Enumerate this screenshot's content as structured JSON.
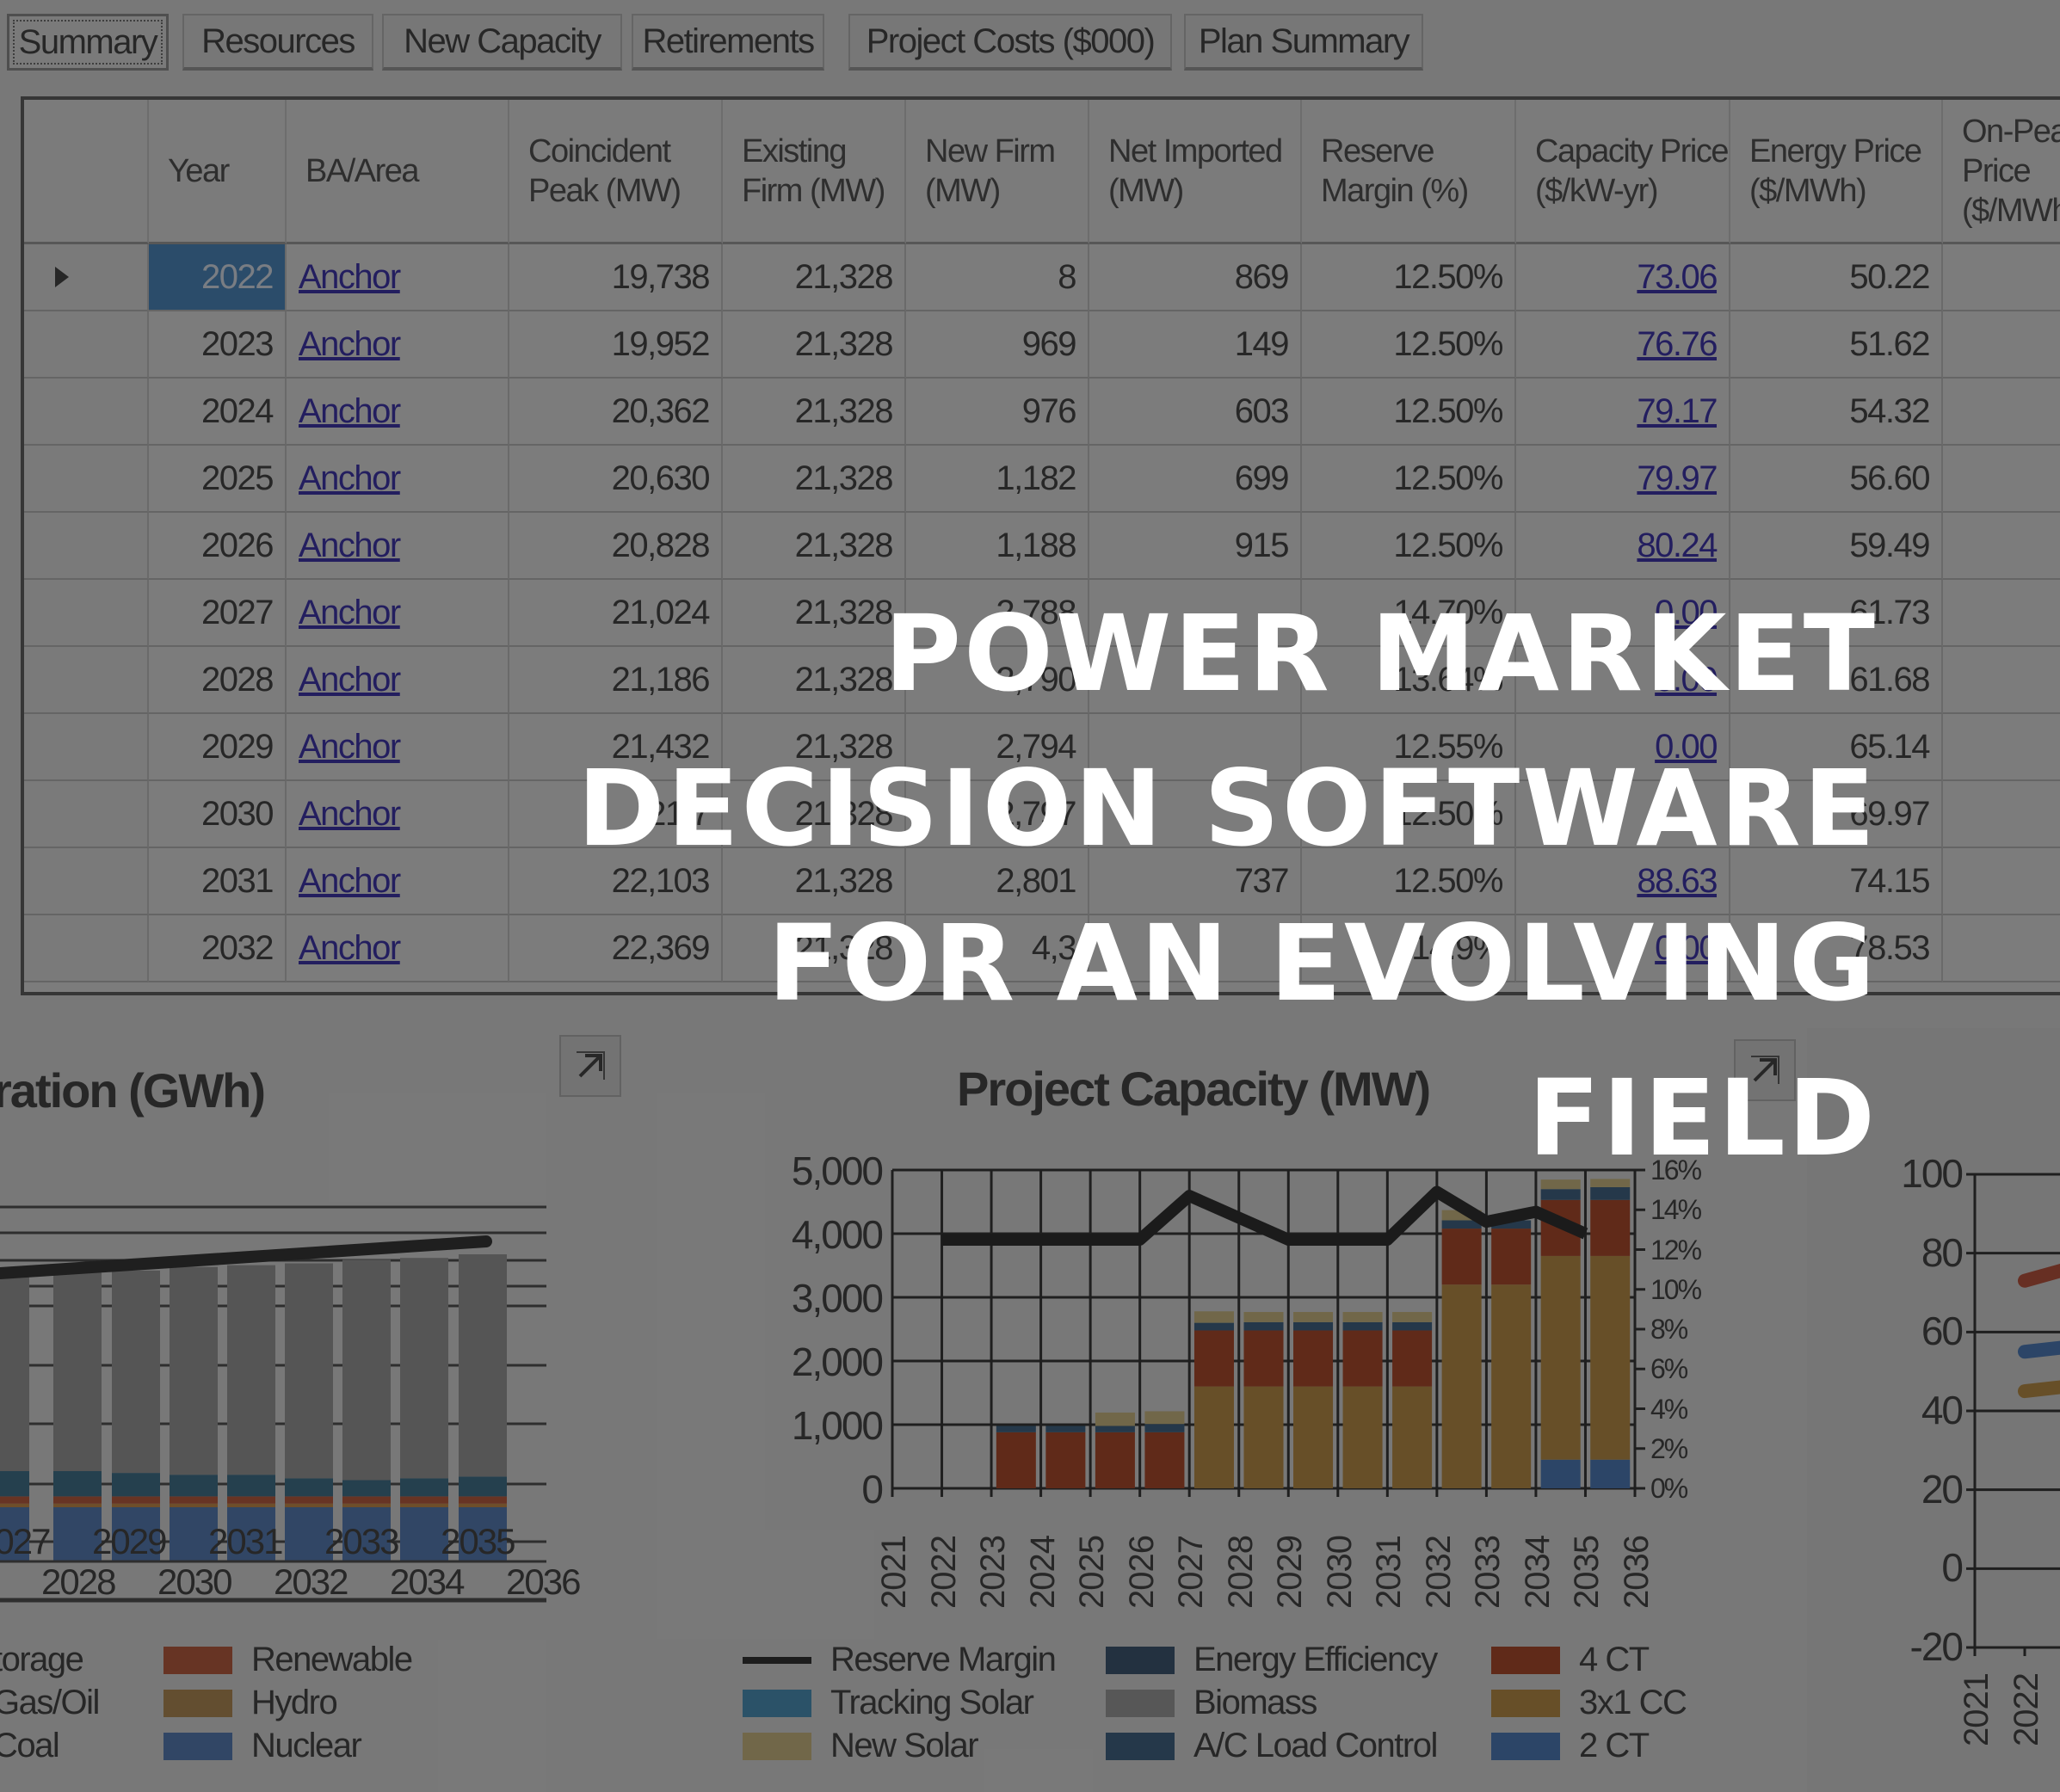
{
  "tabs": [
    {
      "label": "Summary",
      "active": true
    },
    {
      "label": "Resources"
    },
    {
      "label": "New Capacity"
    },
    {
      "label": "Retirements"
    },
    {
      "label": "Project Costs ($000)"
    },
    {
      "label": "Plan Summary"
    }
  ],
  "table": {
    "columns": [
      "",
      "Year",
      "BA/Area",
      "Coincident Peak (MW)",
      "Existing Firm (MW)",
      "New Firm (MW)",
      "Net Imported (MW)",
      "Reserve Margin (%)",
      "Capacity Price ($/kW-yr)",
      "Energy Price ($/MWh)",
      "On-Peak Price ($/MWh)"
    ],
    "rows": [
      {
        "year": "2022",
        "area": "Anchor",
        "peak": "19,738",
        "existing": "21,328",
        "new": "8",
        "net": "869",
        "reserve": "12.50%",
        "cap_price": "73.06",
        "energy": "50.22",
        "selected": true
      },
      {
        "year": "2023",
        "area": "Anchor",
        "peak": "19,952",
        "existing": "21,328",
        "new": "969",
        "net": "149",
        "reserve": "12.50%",
        "cap_price": "76.76",
        "energy": "51.62"
      },
      {
        "year": "2024",
        "area": "Anchor",
        "peak": "20,362",
        "existing": "21,328",
        "new": "976",
        "net": "603",
        "reserve": "12.50%",
        "cap_price": "79.17",
        "energy": "54.32"
      },
      {
        "year": "2025",
        "area": "Anchor",
        "peak": "20,630",
        "existing": "21,328",
        "new": "1,182",
        "net": "699",
        "reserve": "12.50%",
        "cap_price": "79.97",
        "energy": "56.60"
      },
      {
        "year": "2026",
        "area": "Anchor",
        "peak": "20,828",
        "existing": "21,328",
        "new": "1,188",
        "net": "915",
        "reserve": "12.50%",
        "cap_price": "80.24",
        "energy": "59.49"
      },
      {
        "year": "2027",
        "area": "Anchor",
        "peak": "21,024",
        "existing": "21,328",
        "new": "2,788",
        "net": "",
        "reserve": "14.70%",
        "cap_price": "0.00",
        "energy": "61.73"
      },
      {
        "year": "2028",
        "area": "Anchor",
        "peak": "21,186",
        "existing": "21,328",
        "new": "2,790",
        "net": "",
        "reserve": "13.64%",
        "cap_price": "0.00",
        "energy": "61.68"
      },
      {
        "year": "2029",
        "area": "Anchor",
        "peak": "21,432",
        "existing": "21,328",
        "new": "2,794",
        "net": "",
        "reserve": "12.55%",
        "cap_price": "0.00",
        "energy": "65.14"
      },
      {
        "year": "2030",
        "area": "Anchor",
        "peak": "21,7",
        "existing": "21,328",
        "new": "2,797",
        "net": "",
        "reserve": "12.50%",
        "cap_price": "",
        "energy": "69.97"
      },
      {
        "year": "2031",
        "area": "Anchor",
        "peak": "22,103",
        "existing": "21,328",
        "new": "2,801",
        "net": "737",
        "reserve": "12.50%",
        "cap_price": "88.63",
        "energy": "74.15"
      },
      {
        "year": "2032",
        "area": "Anchor",
        "peak": "22,369",
        "existing": "21,328",
        "new": "4,3",
        "net": "",
        "reserve": "14.9%",
        "cap_price": "0.00",
        "energy": "78.53"
      }
    ]
  },
  "charts": {
    "generation": {
      "title": "ration (GWh)",
      "x_top": [
        "2027",
        "2029",
        "2031",
        "2033",
        "2035"
      ],
      "x_bottom": [
        "2028",
        "2030",
        "2032",
        "2034",
        "2036"
      ],
      "legend": [
        {
          "label": "torage",
          "color": ""
        },
        {
          "label": "Gas/Oil",
          "color": ""
        },
        {
          "label": "Coal",
          "color": ""
        },
        {
          "label": "Renewable",
          "color": "#c0502e"
        },
        {
          "label": "Hydro",
          "color": "#b98a48"
        },
        {
          "label": "Nuclear",
          "color": "#4a78bd"
        }
      ]
    },
    "capacity": {
      "title": "Project Capacity (MW)",
      "y_ticks": [
        "5,000",
        "4,000",
        "3,000",
        "2,000",
        "1,000",
        "0"
      ],
      "y2_ticks": [
        "16%",
        "14%",
        "12%",
        "10%",
        "8%",
        "6%",
        "4%",
        "2%",
        "0%"
      ],
      "x_labels": [
        "2021",
        "2022",
        "2023",
        "2024",
        "2025",
        "2026",
        "2027",
        "2028",
        "2029",
        "2030",
        "2031",
        "2032",
        "2033",
        "2034",
        "2035",
        "2036"
      ],
      "legend": [
        {
          "label": "Reserve Margin",
          "color": "#1e1e1e",
          "kind": "line"
        },
        {
          "label": "Energy Efficiency",
          "color": "#2b4a6b"
        },
        {
          "label": "4 CT",
          "color": "#b23a16"
        },
        {
          "label": "Tracking Solar",
          "color": "#3d93c4"
        },
        {
          "label": "Biomass",
          "color": "#9e9e9e"
        },
        {
          "label": "3x1 CC",
          "color": "#c18c35"
        },
        {
          "label": "New Solar",
          "color": "#d8c27e"
        },
        {
          "label": "A/C Load Control",
          "color": "#2f5a80"
        },
        {
          "label": "2 CT",
          "color": "#3f77c0"
        }
      ]
    },
    "prices": {
      "y_ticks": [
        "100",
        "80",
        "60",
        "40",
        "20",
        "0",
        "-20"
      ],
      "x_labels": [
        "2021",
        "2022",
        "2023"
      ]
    }
  },
  "chart_data": [
    {
      "type": "bar",
      "title": "Project Capacity (MW)",
      "categories": [
        "2021",
        "2022",
        "2023",
        "2024",
        "2025",
        "2026",
        "2027",
        "2028",
        "2029",
        "2030",
        "2031",
        "2032",
        "2033",
        "2034",
        "2035",
        "2036"
      ],
      "series": [
        {
          "name": "2 CT",
          "values": [
            0,
            0,
            0,
            0,
            0,
            0,
            0,
            0,
            0,
            0,
            0,
            0,
            0,
            450,
            450,
            0
          ]
        },
        {
          "name": "3x1 CC",
          "values": [
            0,
            0,
            0,
            0,
            0,
            0,
            1600,
            1600,
            1600,
            1600,
            1600,
            3200,
            3200,
            3200,
            3200,
            0
          ]
        },
        {
          "name": "4 CT",
          "values": [
            0,
            0,
            880,
            880,
            880,
            880,
            880,
            880,
            880,
            880,
            880,
            880,
            880,
            880,
            880,
            0
          ]
        },
        {
          "name": "Energy Efficiency / A/C Load Control / Tracking Solar",
          "values": [
            0,
            0,
            100,
            100,
            100,
            130,
            120,
            130,
            130,
            130,
            130,
            130,
            130,
            170,
            200,
            0
          ]
        },
        {
          "name": "New Solar",
          "values": [
            0,
            0,
            0,
            0,
            210,
            200,
            180,
            160,
            160,
            160,
            160,
            160,
            0,
            150,
            130,
            0
          ]
        },
        {
          "name": "Reserve Margin (%)",
          "values": [
            null,
            12.5,
            12.5,
            12.5,
            12.5,
            12.5,
            14.7,
            13.6,
            12.5,
            12.5,
            12.5,
            14.9,
            13.4,
            13.9,
            12.8,
            null
          ]
        }
      ],
      "ylabel": "MW",
      "ylim": [
        0,
        5000
      ],
      "y2lim": [
        0,
        16
      ],
      "legend_position": "bottom"
    },
    {
      "type": "bar",
      "title": "Generation (GWh)",
      "categories": [
        "2027",
        "2028",
        "2029",
        "2030",
        "2031",
        "2032",
        "2033",
        "2034",
        "2035"
      ],
      "series": [
        {
          "name": "Nuclear",
          "values": [
            3,
            3,
            3,
            3,
            3,
            3,
            3,
            3,
            3
          ]
        },
        {
          "name": "Hydro",
          "values": [
            0.2,
            0.2,
            0.2,
            0.2,
            0.2,
            0.2,
            0.2,
            0.2,
            0.2
          ]
        },
        {
          "name": "Renewable",
          "values": [
            0.4,
            0.4,
            0.4,
            0.4,
            0.4,
            0.4,
            0.4,
            0.4,
            0.4
          ]
        },
        {
          "name": "Gas/Oil",
          "values": [
            1.4,
            1.4,
            1.3,
            1.2,
            1.2,
            1.0,
            0.9,
            1.0,
            1.1
          ]
        },
        {
          "name": "Coal",
          "values": [
            11.0,
            11.0,
            11.2,
            11.5,
            11.6,
            11.9,
            12.2,
            12.2,
            12.3
          ]
        }
      ],
      "legend_position": "bottom"
    },
    {
      "type": "line",
      "title": "",
      "categories": [
        "2021",
        "2022",
        "2023"
      ],
      "series": [
        {
          "name": "red",
          "values": [
            null,
            73,
            78
          ]
        },
        {
          "name": "blue",
          "values": [
            null,
            55,
            57
          ]
        },
        {
          "name": "orange",
          "values": [
            null,
            45,
            47
          ]
        }
      ],
      "ylim": [
        -20,
        100
      ]
    }
  ],
  "overlay": {
    "headline": [
      "POWER MARKET",
      "DECISION SOFTWARE",
      "FOR AN EVOLVING",
      "FIELD"
    ]
  }
}
